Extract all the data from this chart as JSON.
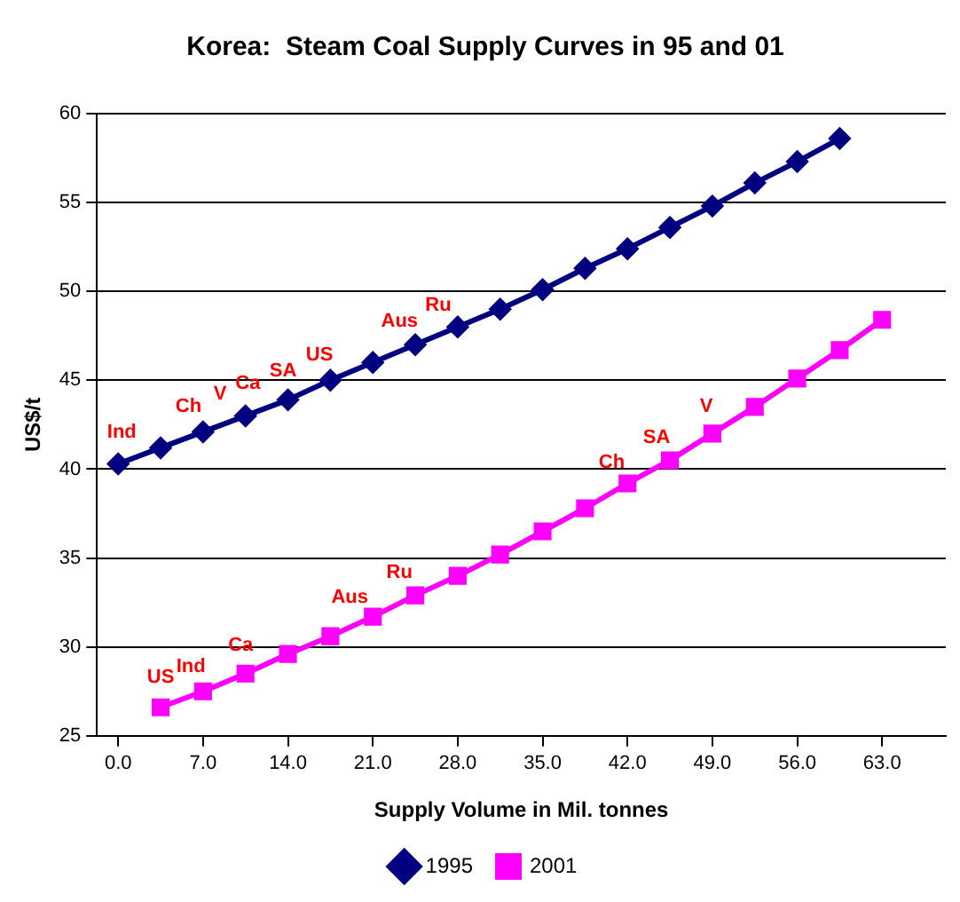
{
  "chart_data": {
    "type": "line",
    "title": "Korea:  Steam Coal Supply Curves in 95 and 01",
    "xlabel": "Supply Volume in Mil. tonnes",
    "ylabel": "US$/t",
    "xlim": [
      -1.75,
      68.25
    ],
    "xticks": [
      {
        "value": 0,
        "label": "0.0"
      },
      {
        "value": 7,
        "label": "7.0"
      },
      {
        "value": 14,
        "label": "14.0"
      },
      {
        "value": 21,
        "label": "21.0"
      },
      {
        "value": 28,
        "label": "28.0"
      },
      {
        "value": 35,
        "label": "35.0"
      },
      {
        "value": 42,
        "label": "42.0"
      },
      {
        "value": 49,
        "label": "49.0"
      },
      {
        "value": 56,
        "label": "56.0"
      },
      {
        "value": 63,
        "label": "63.0"
      }
    ],
    "ylim": [
      25,
      60
    ],
    "yticks": [
      25,
      30,
      35,
      40,
      45,
      50,
      55,
      60
    ],
    "grid": "y",
    "legend": "bottom",
    "series": [
      {
        "name": "1995",
        "color": "#000080",
        "marker": "diamond",
        "x": [
          0,
          3.5,
          7,
          10.5,
          14,
          17.5,
          21,
          24.5,
          28,
          31.5,
          35,
          38.5,
          42,
          45.5,
          49,
          52.5,
          56,
          59.5
        ],
        "values": [
          40.3,
          41.2,
          42.1,
          43.0,
          43.9,
          45.0,
          46.0,
          47.0,
          48.0,
          49.0,
          50.1,
          51.3,
          52.4,
          53.6,
          54.8,
          56.1,
          57.3,
          58.6
        ]
      },
      {
        "name": "2001",
        "color": "#ff00ff",
        "marker": "square",
        "x": [
          3.5,
          7,
          10.5,
          14,
          17.5,
          21,
          24.5,
          28,
          31.5,
          35,
          38.5,
          42,
          45.5,
          49,
          52.5,
          56,
          59.5,
          63
        ],
        "values": [
          26.6,
          27.5,
          28.5,
          29.6,
          30.6,
          31.7,
          32.9,
          34.0,
          35.2,
          36.5,
          37.8,
          39.2,
          40.5,
          42.0,
          43.5,
          45.1,
          46.7,
          48.4
        ]
      }
    ],
    "annotations": [
      {
        "text": "Ind",
        "x": 0.3,
        "y": 40.4
      },
      {
        "text": "Ch",
        "x": 5.8,
        "y": 41.8
      },
      {
        "text": "V",
        "x": 8.4,
        "y": 42.5
      },
      {
        "text": "Ca",
        "x": 10.7,
        "y": 43.1
      },
      {
        "text": "SA",
        "x": 13.6,
        "y": 43.8
      },
      {
        "text": "US",
        "x": 16.6,
        "y": 44.7
      },
      {
        "text": "Aus",
        "x": 23.2,
        "y": 46.6
      },
      {
        "text": "Ru",
        "x": 26.4,
        "y": 47.5
      },
      {
        "text": "US",
        "x": 3.5,
        "y": 26.6
      },
      {
        "text": "Ind",
        "x": 6.0,
        "y": 27.2
      },
      {
        "text": "Ca",
        "x": 10.1,
        "y": 28.4
      },
      {
        "text": "Aus",
        "x": 19.1,
        "y": 31.1
      },
      {
        "text": "Ru",
        "x": 23.2,
        "y": 32.5
      },
      {
        "text": "Ch",
        "x": 40.7,
        "y": 38.7
      },
      {
        "text": "SA",
        "x": 44.4,
        "y": 40.1
      },
      {
        "text": "V",
        "x": 48.5,
        "y": 41.8
      }
    ]
  }
}
